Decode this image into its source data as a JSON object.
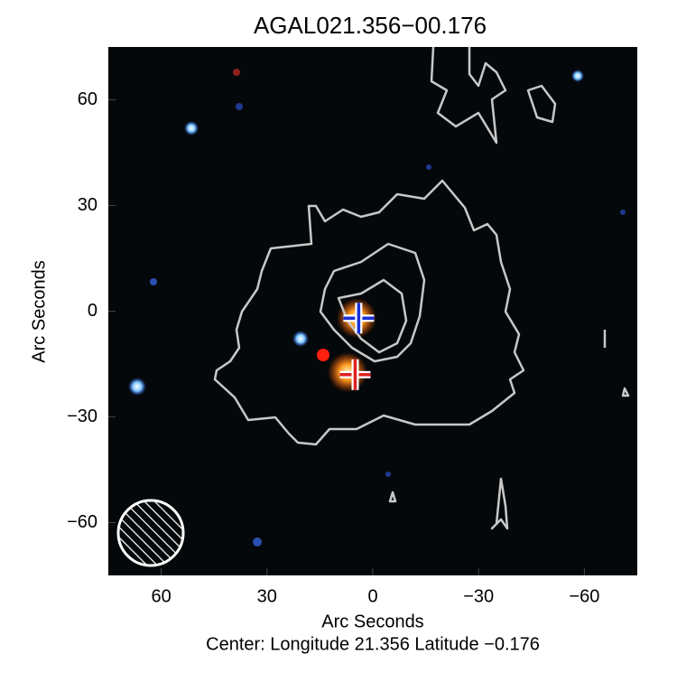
{
  "chart_data": {
    "type": "image",
    "title": "AGAL021.356−00.176",
    "subtitle": "Center:  Longitude 21.356 Latitude −0.176",
    "x_label": "Arc Seconds",
    "y_label": "Arc Seconds",
    "xlim": [
      75,
      -75
    ],
    "ylim": [
      -75,
      75
    ],
    "xticks": [
      60,
      30,
      0,
      {
        "value": -30,
        "label": "−30"
      },
      {
        "value": -60,
        "label": "−60"
      }
    ],
    "yticks": [
      {
        "value": -60,
        "label": "−60"
      },
      {
        "value": -30,
        "label": "−30"
      },
      0,
      30,
      60
    ],
    "markers": [
      {
        "x": 4,
        "y": -2,
        "color": "#1a2fd6"
      },
      {
        "x": 5,
        "y": -18,
        "color": "#e02020"
      }
    ]
  }
}
